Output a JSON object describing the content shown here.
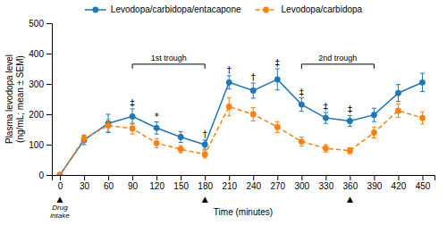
{
  "chart_data": {
    "type": "line",
    "x": [
      0,
      30,
      60,
      90,
      120,
      150,
      180,
      210,
      240,
      270,
      300,
      330,
      360,
      390,
      420,
      450
    ],
    "series": [
      {
        "name": "Levodopa/carbidopa/entacapone",
        "values": [
          0,
          115,
          170,
          193,
          155,
          125,
          100,
          305,
          278,
          315,
          232,
          188,
          178,
          198,
          270,
          305
        ],
        "errors": [
          0,
          15,
          30,
          25,
          20,
          18,
          15,
          22,
          25,
          35,
          22,
          18,
          18,
          22,
          28,
          30
        ],
        "line_style": "solid",
        "marker": "circle"
      },
      {
        "name": "Levodopa/carbidopa",
        "values": [
          0,
          120,
          163,
          153,
          105,
          85,
          68,
          225,
          200,
          158,
          110,
          88,
          80,
          140,
          212,
          188
        ],
        "errors": [
          0,
          12,
          20,
          18,
          15,
          12,
          12,
          30,
          22,
          18,
          15,
          12,
          10,
          18,
          22,
          20
        ],
        "line_style": "dashed",
        "marker": "circle"
      }
    ],
    "xlabel": "Time (minutes)",
    "ylabel": [
      "Plasma levodopa level",
      "(ng/mL; mean ± SEM)"
    ],
    "xlim": [
      -10,
      465
    ],
    "xticks": [
      0,
      30,
      60,
      90,
      120,
      150,
      180,
      210,
      240,
      270,
      300,
      330,
      360,
      390,
      420,
      450
    ],
    "ylim": [
      0,
      500
    ],
    "yticks": [
      0,
      100,
      200,
      300,
      400,
      500
    ],
    "grid": false,
    "legend": "top",
    "significance": [
      {
        "x": 90,
        "label": "‡"
      },
      {
        "x": 120,
        "label": "*"
      },
      {
        "x": 180,
        "label": "†"
      },
      {
        "x": 210,
        "label": "†"
      },
      {
        "x": 240,
        "label": "†"
      },
      {
        "x": 270,
        "label": "‡"
      },
      {
        "x": 300,
        "label": "‡"
      },
      {
        "x": 330,
        "label": "‡"
      },
      {
        "x": 360,
        "label": "‡"
      }
    ],
    "brackets": [
      {
        "x": [
          90,
          180
        ],
        "y": 365,
        "label": "1st trough"
      },
      {
        "x": [
          300,
          390
        ],
        "y": 365,
        "label": "2nd trough"
      }
    ],
    "drug_intake": {
      "x": [
        0,
        180,
        360
      ],
      "symbol": "▲",
      "label": [
        "Drug",
        "intake"
      ]
    }
  }
}
